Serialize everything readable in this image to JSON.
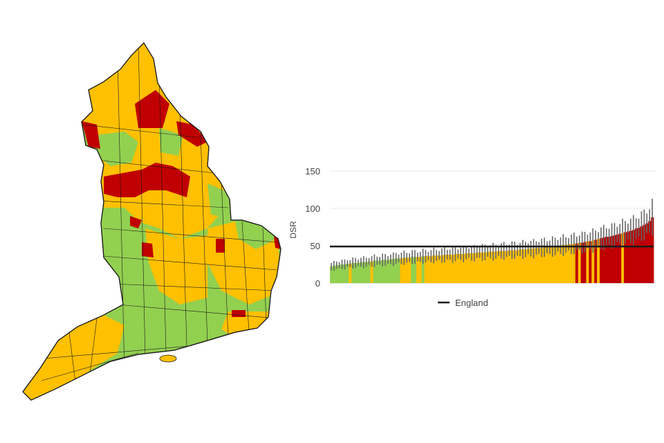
{
  "map": {
    "colors": {
      "below": "#92d050",
      "similar": "#ffc000",
      "above": "#c00000",
      "border": "#1a1a1a"
    }
  },
  "chart_data": {
    "type": "bar",
    "title": "",
    "xlabel": "",
    "ylabel": "DSR",
    "ylim": [
      0,
      150
    ],
    "yticks": [
      "0",
      "50",
      "100",
      "150"
    ],
    "grid": true,
    "legend": {
      "entries": [
        "England"
      ],
      "placement": "bottom"
    },
    "reference_line": {
      "name": "England",
      "value": 49,
      "color": "#1a1a1a"
    },
    "ci_relative_half_width": 0.22,
    "color_key": {
      "g": "#92d050",
      "y": "#ffc000",
      "r": "#c00000"
    },
    "bar_color_codes": "gggggggygggggggyggggggggggyyyyggyygyyyyyyyyyyyyyyyyyyyyyyyyyyyyyyyyyyyyyyyyyyyyyyyyyyyyyyyyryrryryryrrrrrrrryrrrrrrrrrrr",
    "values": [
      22,
      23,
      24,
      24,
      25,
      25,
      26,
      26,
      27,
      27,
      27,
      28,
      28,
      28,
      29,
      29,
      30,
      30,
      30,
      31,
      31,
      31,
      32,
      32,
      33,
      33,
      33,
      34,
      34,
      34,
      35,
      35,
      35,
      35,
      36,
      36,
      36,
      36,
      37,
      37,
      37,
      37,
      38,
      38,
      38,
      38,
      39,
      39,
      39,
      39,
      40,
      40,
      40,
      40,
      41,
      41,
      41,
      41,
      42,
      42,
      42,
      42,
      43,
      43,
      43,
      43,
      44,
      44,
      44,
      44,
      45,
      45,
      45,
      46,
      46,
      46,
      47,
      47,
      47,
      48,
      48,
      48,
      49,
      49,
      50,
      50,
      51,
      51,
      52,
      52,
      53,
      53,
      54,
      54,
      55,
      56,
      56,
      57,
      58,
      59,
      60,
      61,
      62,
      62,
      63,
      64,
      65,
      66,
      67,
      68,
      69,
      70,
      71,
      73,
      74,
      76,
      78,
      80,
      83,
      88
    ]
  }
}
